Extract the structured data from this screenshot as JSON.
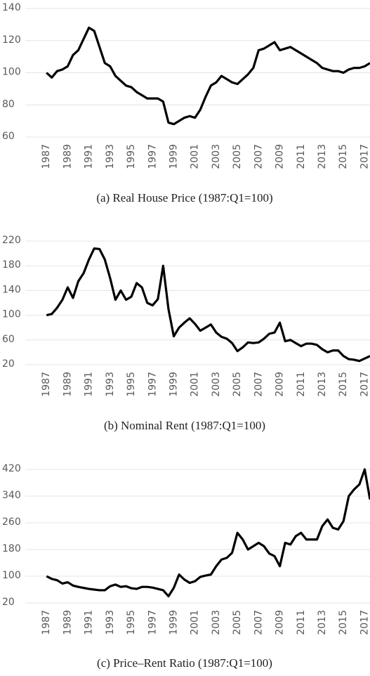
{
  "chart_data": [
    {
      "type": "line",
      "title": "(a) Real House Price (1987:Q1=100)",
      "color": "#000000",
      "x": [
        1987,
        1987.5,
        1988,
        1988.5,
        1989,
        1989.5,
        1990,
        1990.5,
        1991,
        1991.5,
        1992,
        1992.5,
        1993,
        1993.5,
        1994,
        1994.5,
        1995,
        1995.5,
        1996,
        1996.5,
        1997,
        1997.5,
        1998,
        1998.5,
        1999,
        1999.5,
        2000,
        2000.5,
        2001,
        2001.5,
        2002,
        2002.5,
        2003,
        2003.5,
        2004,
        2004.5,
        2005,
        2005.5,
        2006,
        2006.5,
        2007,
        2007.5,
        2008,
        2008.5,
        2009,
        2009.5,
        2010,
        2010.5,
        2011,
        2011.5,
        2012,
        2012.5,
        2013,
        2013.5,
        2014,
        2014.5,
        2015,
        2015.5,
        2016,
        2016.5,
        2017,
        2017.5
      ],
      "values": [
        100,
        97,
        101,
        102,
        104,
        111,
        114,
        121,
        128,
        126,
        116,
        106,
        104,
        98,
        95,
        92,
        91,
        88,
        86,
        84,
        84,
        84,
        82,
        69,
        68,
        70,
        72,
        73,
        72,
        77,
        85,
        92,
        94,
        98,
        96,
        94,
        93,
        96,
        99,
        103,
        114,
        115,
        117,
        119,
        114,
        115,
        116,
        114,
        112,
        110,
        108,
        106,
        103,
        102,
        101,
        101,
        100,
        102,
        103,
        103,
        104,
        106
      ],
      "xlim": [
        1985,
        2017.5
      ],
      "xticks": [
        1987,
        1989,
        1991,
        1993,
        1995,
        1997,
        1999,
        2001,
        2003,
        2005,
        2007,
        2009,
        2011,
        2013,
        2015,
        2017
      ],
      "ylim": [
        60,
        140
      ],
      "yticks": [
        60,
        80,
        100,
        120,
        140
      ],
      "grid": true
    },
    {
      "type": "line",
      "title": "(b) Nominal Rent (1987:Q1=100)",
      "color": "#000000",
      "x": [
        1987,
        1987.5,
        1988,
        1988.5,
        1989,
        1989.5,
        1990,
        1990.5,
        1991,
        1991.5,
        1992,
        1992.5,
        1993,
        1993.5,
        1994,
        1994.5,
        1995,
        1995.5,
        1996,
        1996.5,
        1997,
        1997.5,
        1998,
        1998.5,
        1999,
        1999.5,
        2000,
        2000.5,
        2001,
        2001.5,
        2002,
        2002.5,
        2003,
        2003.5,
        2004,
        2004.5,
        2005,
        2005.5,
        2006,
        2006.5,
        2007,
        2007.5,
        2008,
        2008.5,
        2009,
        2009.5,
        2010,
        2010.5,
        2011,
        2011.5,
        2012,
        2012.5,
        2013,
        2013.5,
        2014,
        2014.5,
        2015,
        2015.5,
        2016,
        2016.5,
        2017,
        2017.5
      ],
      "values": [
        100,
        102,
        112,
        125,
        145,
        128,
        155,
        168,
        190,
        208,
        207,
        190,
        160,
        125,
        140,
        125,
        130,
        152,
        145,
        120,
        116,
        126,
        180,
        110,
        66,
        80,
        88,
        95,
        86,
        75,
        80,
        85,
        72,
        65,
        62,
        55,
        42,
        48,
        56,
        55,
        56,
        62,
        70,
        72,
        88,
        58,
        60,
        55,
        50,
        54,
        54,
        52,
        45,
        40,
        43,
        43,
        34,
        29,
        28,
        26,
        30,
        34
      ],
      "xlim": [
        1985,
        2017.5
      ],
      "xticks": [
        1987,
        1989,
        1991,
        1993,
        1995,
        1997,
        1999,
        2001,
        2003,
        2005,
        2007,
        2009,
        2011,
        2013,
        2015,
        2017
      ],
      "ylim": [
        20,
        220
      ],
      "yticks": [
        20,
        60,
        100,
        140,
        180,
        220
      ],
      "grid": true
    },
    {
      "type": "line",
      "title": "(c) Price–Rent Ratio (1987:Q1=100)",
      "color": "#000000",
      "x": [
        1987,
        1987.5,
        1988,
        1988.5,
        1989,
        1989.5,
        1990,
        1990.5,
        1991,
        1991.5,
        1992,
        1992.5,
        1993,
        1993.5,
        1994,
        1994.5,
        1995,
        1995.5,
        1996,
        1996.5,
        1997,
        1997.5,
        1998,
        1998.5,
        1999,
        1999.5,
        2000,
        2000.5,
        2001,
        2001.5,
        2002,
        2002.5,
        2003,
        2003.5,
        2004,
        2004.5,
        2005,
        2005.5,
        2006,
        2006.5,
        2007,
        2007.5,
        2008,
        2008.5,
        2009,
        2009.5,
        2010,
        2010.5,
        2011,
        2011.5,
        2012,
        2012.5,
        2013,
        2013.5,
        2014,
        2014.5,
        2015,
        2015.5,
        2016,
        2016.5,
        2017,
        2017.5
      ],
      "values": [
        100,
        92,
        88,
        78,
        82,
        72,
        68,
        65,
        62,
        60,
        58,
        58,
        70,
        75,
        68,
        70,
        64,
        62,
        68,
        68,
        66,
        62,
        58,
        40,
        65,
        105,
        90,
        80,
        85,
        98,
        102,
        105,
        130,
        150,
        155,
        170,
        230,
        210,
        180,
        190,
        200,
        190,
        168,
        160,
        130,
        200,
        195,
        220,
        230,
        210,
        210,
        210,
        250,
        270,
        245,
        240,
        265,
        340,
        360,
        375,
        420,
        330
      ],
      "xlim": [
        1985,
        2017.5
      ],
      "xticks": [
        1987,
        1989,
        1991,
        1993,
        1995,
        1997,
        1999,
        2001,
        2003,
        2005,
        2007,
        2009,
        2011,
        2013,
        2015,
        2017
      ],
      "ylim": [
        20,
        420
      ],
      "yticks": [
        20,
        100,
        180,
        260,
        340,
        420
      ],
      "grid": true
    }
  ]
}
